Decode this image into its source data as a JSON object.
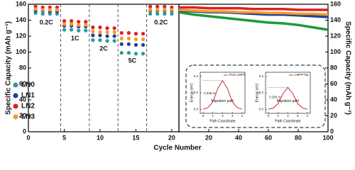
{
  "xlabel": "Cycle Number",
  "chart_data": [
    {
      "type": "scatter",
      "ylabel": "Specific Capacity (mAh g⁻¹)",
      "xlim": [
        0,
        21
      ],
      "xticks": [
        0,
        5,
        10,
        15,
        20
      ],
      "ylim": [
        0,
        160
      ],
      "yticks": [
        0,
        20,
        40,
        60,
        80,
        100,
        120,
        140,
        160
      ],
      "annotations": [
        "0.2C",
        "1C",
        "2C",
        "5C",
        "0.2C"
      ],
      "x": [
        1,
        2,
        3,
        4,
        5,
        6,
        7,
        8,
        9,
        10,
        11,
        12,
        13,
        14,
        15,
        16,
        17,
        18,
        19,
        20
      ],
      "series": [
        {
          "name": "LN0",
          "color": "#2a9a9a",
          "values": [
            149,
            148,
            148,
            148,
            128,
            128,
            127,
            127,
            115,
            115,
            114,
            114,
            99,
            99,
            98,
            98,
            148,
            148,
            148,
            148
          ]
        },
        {
          "name": "LN1",
          "color": "#1f3f9f",
          "values": [
            152,
            152,
            151,
            151,
            133,
            133,
            132,
            132,
            121,
            121,
            120,
            120,
            110,
            110,
            109,
            109,
            152,
            152,
            152,
            152
          ]
        },
        {
          "name": "LN2",
          "color": "#e01f1f",
          "values": [
            157,
            156,
            156,
            156,
            139,
            139,
            138,
            138,
            131,
            131,
            130,
            130,
            124,
            124,
            123,
            123,
            157,
            157,
            157,
            156
          ]
        },
        {
          "name": "LN3",
          "color": "#f59a23",
          "values": [
            154,
            153,
            153,
            153,
            135,
            135,
            134,
            134,
            126,
            125,
            125,
            125,
            117,
            117,
            116,
            116,
            153,
            153,
            153,
            153
          ]
        }
      ]
    },
    {
      "type": "line",
      "ylabel": "Specific Capacity (mAh g⁻¹)",
      "xlim": [
        0,
        100
      ],
      "xticks": [
        20,
        40,
        60,
        80,
        100
      ],
      "ylim": [
        0,
        160
      ],
      "yticks": [
        0,
        20,
        40,
        60,
        80,
        100,
        120,
        140,
        160
      ],
      "x": [
        0,
        10,
        20,
        30,
        40,
        50,
        60,
        70,
        80,
        90,
        100
      ],
      "series": [
        {
          "color": "#1a9b3a",
          "values": [
            150,
            147,
            145,
            143,
            141,
            139,
            137,
            136,
            134,
            131,
            128
          ]
        },
        {
          "color": "#1f3f9f",
          "values": [
            152,
            151,
            150,
            150,
            149,
            148,
            147,
            147,
            146,
            145,
            144
          ]
        },
        {
          "color": "#e01f1f",
          "values": [
            156,
            156,
            155,
            155,
            155,
            154,
            154,
            154,
            153,
            153,
            153
          ]
        },
        {
          "color": "#f59a23",
          "values": [
            153,
            152,
            151,
            151,
            150,
            150,
            149,
            149,
            148,
            148,
            147
          ]
        }
      ]
    },
    {
      "type": "line",
      "xlabel": "Path Coordinate",
      "ylabel": "Energy (eV)",
      "annotation": "Migration path",
      "barrier": {
        "value": 0.348,
        "label": "0.348 eV"
      },
      "xlim": [
        -0.3,
        4.3
      ],
      "xticks": [
        0,
        1,
        2,
        3,
        4
      ],
      "ylim": [
        -0.05,
        0.45
      ],
      "yticks": [
        {
          "value": 0,
          "label": "0.0"
        },
        {
          "value": 0.2,
          "label": "0.2"
        },
        {
          "value": 0.4,
          "label": "0.4"
        }
      ],
      "x": [
        0,
        0.5,
        1,
        1.5,
        2,
        2.5,
        3,
        3.5,
        4
      ],
      "series": [
        {
          "name": "Pure LMFP",
          "color": "#c00000",
          "values": [
            0,
            0.02,
            0.09,
            0.25,
            0.348,
            0.25,
            0.09,
            0.02,
            0
          ]
        }
      ]
    },
    {
      "type": "line",
      "xlabel": "Path Coordinate",
      "ylabel": "Energy (eV)",
      "annotation": "Migration path",
      "barrier": {
        "value": 0.266,
        "label": "0.266 eV"
      },
      "xlim": [
        -0.3,
        4.3
      ],
      "xticks": [
        0,
        1,
        2,
        3,
        4
      ],
      "ylim": [
        -0.05,
        0.45
      ],
      "yticks": [
        {
          "value": 0,
          "label": "0.0"
        },
        {
          "value": 0.2,
          "label": "0.2"
        },
        {
          "value": 0.4,
          "label": "0.4"
        }
      ],
      "x": [
        0,
        0.5,
        1,
        1.5,
        2,
        2.5,
        3,
        3.5,
        4
      ],
      "series": [
        {
          "name": "LMFP-Na",
          "color": "#c00000",
          "values": [
            0,
            0.015,
            0.07,
            0.19,
            0.266,
            0.19,
            0.07,
            0.015,
            0
          ]
        }
      ]
    }
  ]
}
